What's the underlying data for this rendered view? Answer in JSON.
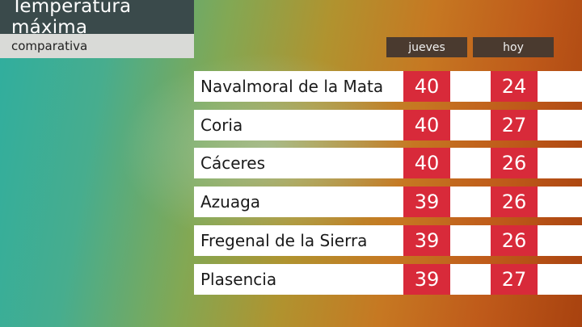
{
  "title": "Temperatura máxima",
  "subtitle": "comparativa",
  "columns": [
    "jueves",
    "hoy"
  ],
  "rows": [
    {
      "city": "Navalmoral de la Mata",
      "jueves": "40",
      "hoy": "24"
    },
    {
      "city": "Coria",
      "jueves": "40",
      "hoy": "27"
    },
    {
      "city": "Cáceres",
      "jueves": "40",
      "hoy": "26"
    },
    {
      "city": "Azuaga",
      "jueves": "39",
      "hoy": "26"
    },
    {
      "city": "Fregenal de la Sierra",
      "jueves": "39",
      "hoy": "26"
    },
    {
      "city": "Plasencia",
      "jueves": "39",
      "hoy": "27"
    }
  ],
  "colors": {
    "value_box": "#d82a3a",
    "title_bar": "#3a4a4b",
    "header_box": "#4a3a2f"
  }
}
